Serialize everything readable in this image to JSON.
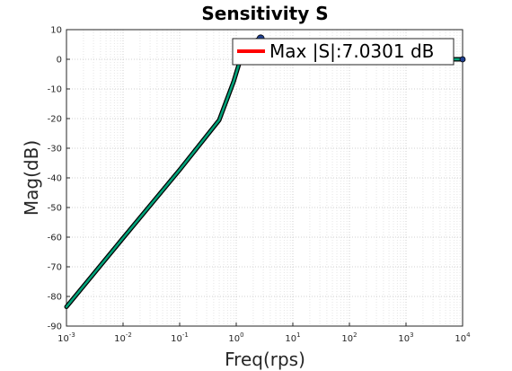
{
  "chart_data": {
    "type": "line",
    "title": "Sensitivity S",
    "xlabel": "Freq(rps)",
    "ylabel": "Mag(dB)",
    "xscale": "log",
    "xlim": [
      0.001,
      10000
    ],
    "ylim": [
      -90,
      10
    ],
    "x_ticks": [
      "-3",
      "-2",
      "-1",
      "0",
      "1",
      "2",
      "3",
      "4"
    ],
    "y_ticks": [
      10,
      0,
      -10,
      -20,
      -30,
      -40,
      -50,
      -60,
      -70,
      -80,
      -90
    ],
    "grid": "on",
    "legend": {
      "placement": "top-right",
      "entries": [
        "Max |S|:7.0301 dB"
      ]
    },
    "colors": {
      "curve_edge": "#000000",
      "curve_fill": "#00a37a",
      "legend_line": "#ff0000",
      "marker": "#1f3f8f"
    },
    "series": [
      {
        "x": [
          0.001,
          0.01,
          0.1,
          0.5,
          0.9,
          1.3,
          2.0,
          2.7,
          4,
          7,
          10,
          100,
          1000,
          10000
        ],
        "y": [
          -83.5,
          -60.3,
          -37.3,
          -20.5,
          -7.5,
          2.5,
          6.0,
          7.0301,
          4.2,
          1.6,
          0.5,
          0.05,
          0.0,
          0.0
        ]
      }
    ],
    "peak_marker": {
      "x": 2.7,
      "y": 7.0301
    }
  }
}
